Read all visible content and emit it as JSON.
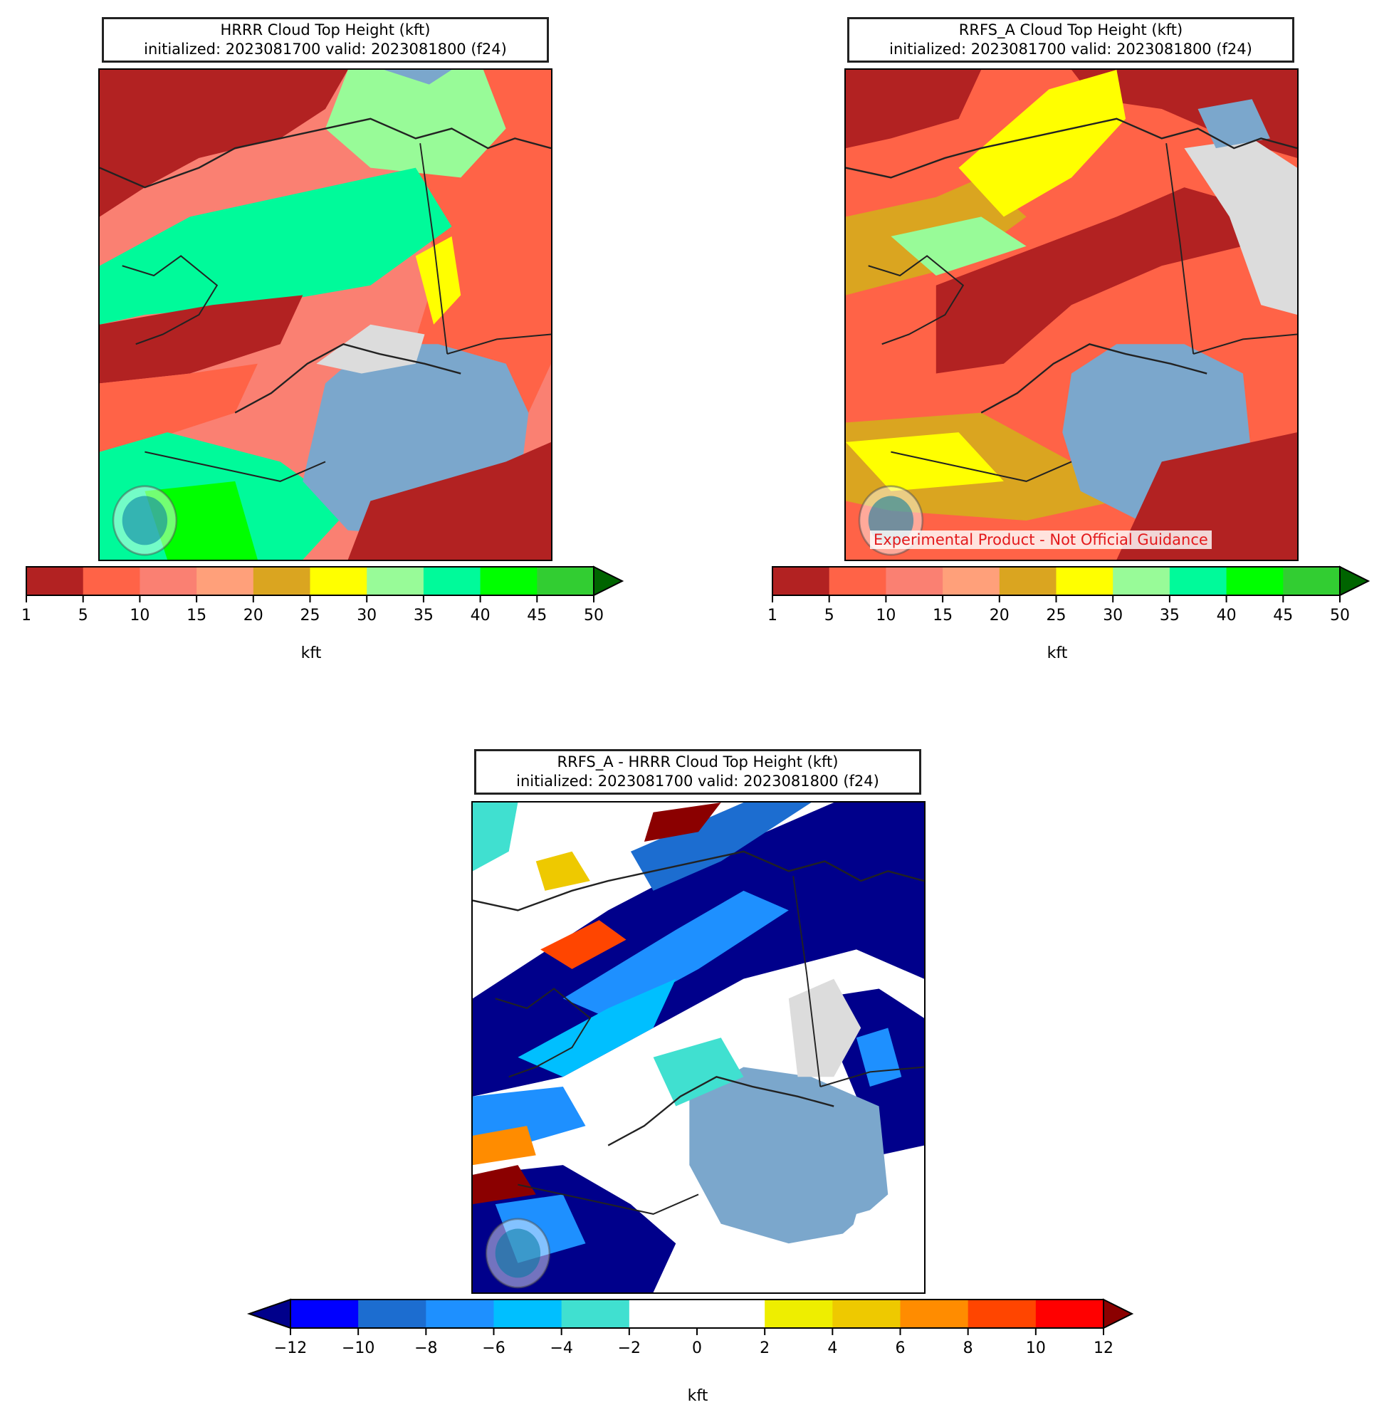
{
  "panels": [
    {
      "id": "hrrr",
      "title": "HRRR Cloud Top Height (kft)",
      "subtitle": "initialized: 2023081700 valid: 2023081800 (f24)",
      "colorbar": {
        "label": "kft",
        "ticks": [
          "1",
          "5",
          "10",
          "15",
          "20",
          "25",
          "30",
          "35",
          "40",
          "45",
          "50"
        ],
        "colors": [
          "#b22222",
          "#ff6347",
          "#fa8072",
          "#ffa07a",
          "#daa520",
          "#ffff00",
          "#98fb98",
          "#00fa9a",
          "#00ff00",
          "#32cd32"
        ],
        "over_color": "#006400",
        "extend": "max"
      }
    },
    {
      "id": "rrfs",
      "title": "RRFS_A Cloud Top Height (kft)",
      "subtitle": "initialized: 2023081700 valid: 2023081800 (f24)",
      "watermark": "Experimental Product - Not Official Guidance",
      "colorbar": {
        "label": "kft",
        "ticks": [
          "1",
          "5",
          "10",
          "15",
          "20",
          "25",
          "30",
          "35",
          "40",
          "45",
          "50"
        ],
        "colors": [
          "#b22222",
          "#ff6347",
          "#fa8072",
          "#ffa07a",
          "#daa520",
          "#ffff00",
          "#98fb98",
          "#00fa9a",
          "#00ff00",
          "#32cd32"
        ],
        "over_color": "#006400",
        "extend": "max"
      }
    },
    {
      "id": "diff",
      "title": "RRFS_A - HRRR Cloud Top Height (kft)",
      "subtitle": "initialized: 2023081700 valid: 2023081800 (f24)",
      "colorbar": {
        "label": "kft",
        "ticks": [
          "−12",
          "−10",
          "−8",
          "−6",
          "−4",
          "−2",
          "0",
          "2",
          "4",
          "6",
          "8",
          "10",
          "12"
        ],
        "colors": [
          "#0000ff",
          "#1c6dd0",
          "#1e90ff",
          "#00bfff",
          "#40e0d0",
          "#ffffff",
          "#ffffff",
          "#eeee00",
          "#eec900",
          "#ff8c00",
          "#ff4500",
          "#ff0000"
        ],
        "under_color": "#00008b",
        "over_color": "#8b0000",
        "extend": "both"
      }
    }
  ]
}
